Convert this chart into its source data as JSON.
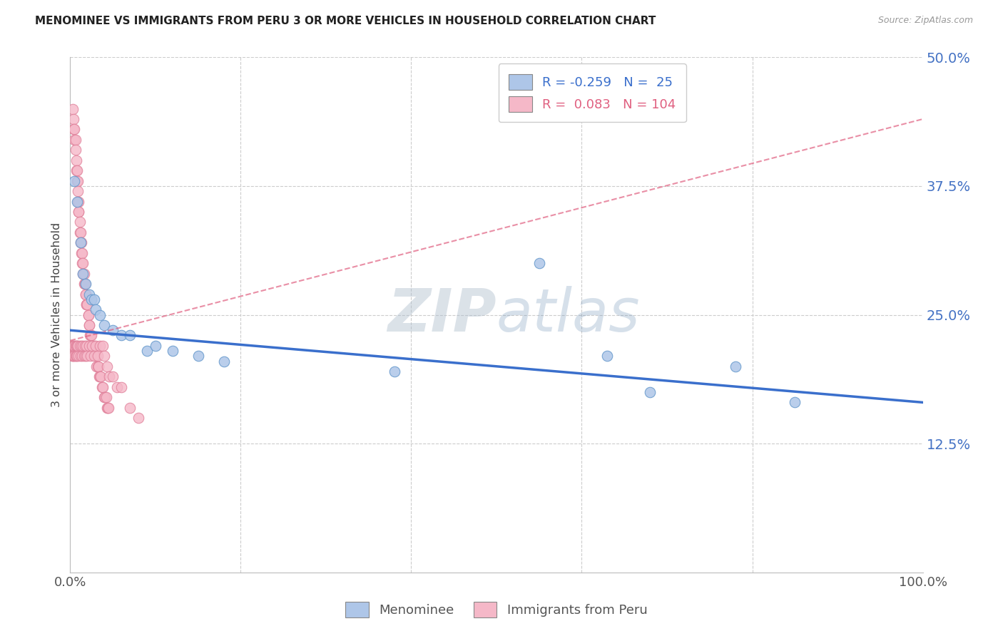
{
  "title": "MENOMINEE VS IMMIGRANTS FROM PERU 3 OR MORE VEHICLES IN HOUSEHOLD CORRELATION CHART",
  "source": "Source: ZipAtlas.com",
  "ylabel": "3 or more Vehicles in Household",
  "xlim": [
    0,
    1.0
  ],
  "ylim": [
    0,
    0.5
  ],
  "menominee_R": -0.259,
  "menominee_N": 25,
  "peru_R": 0.083,
  "peru_N": 104,
  "menominee_color": "#aec6e8",
  "menominee_edge": "#6699cc",
  "peru_color": "#f5b8c8",
  "peru_edge": "#e0809a",
  "menominee_line_color": "#3a6fcc",
  "peru_line_color": "#e06080",
  "watermark_color": "#d0dce8",
  "background_color": "#ffffff",
  "grid_color": "#cccccc",
  "men_trend_x0": 0.0,
  "men_trend_y0": 0.235,
  "men_trend_x1": 1.0,
  "men_trend_y1": 0.165,
  "peru_trend_x0": 0.0,
  "peru_trend_y0": 0.225,
  "peru_trend_x1": 1.0,
  "peru_trend_y1": 0.44,
  "menominee_x": [
    0.005,
    0.008,
    0.012,
    0.015,
    0.018,
    0.022,
    0.025,
    0.028,
    0.03,
    0.035,
    0.04,
    0.05,
    0.06,
    0.07,
    0.09,
    0.1,
    0.12,
    0.15,
    0.18,
    0.38,
    0.55,
    0.63,
    0.68,
    0.78,
    0.85
  ],
  "menominee_y": [
    0.38,
    0.36,
    0.32,
    0.29,
    0.28,
    0.27,
    0.265,
    0.265,
    0.255,
    0.25,
    0.24,
    0.235,
    0.23,
    0.23,
    0.215,
    0.22,
    0.215,
    0.21,
    0.205,
    0.195,
    0.3,
    0.21,
    0.175,
    0.2,
    0.165
  ],
  "peru_x": [
    0.003,
    0.004,
    0.004,
    0.005,
    0.005,
    0.006,
    0.006,
    0.007,
    0.007,
    0.008,
    0.008,
    0.009,
    0.009,
    0.009,
    0.01,
    0.01,
    0.01,
    0.011,
    0.011,
    0.012,
    0.012,
    0.013,
    0.013,
    0.014,
    0.014,
    0.015,
    0.015,
    0.016,
    0.016,
    0.017,
    0.017,
    0.018,
    0.018,
    0.019,
    0.019,
    0.02,
    0.021,
    0.021,
    0.022,
    0.022,
    0.023,
    0.024,
    0.025,
    0.026,
    0.027,
    0.028,
    0.029,
    0.03,
    0.031,
    0.032,
    0.033,
    0.034,
    0.035,
    0.036,
    0.037,
    0.038,
    0.04,
    0.041,
    0.042,
    0.043,
    0.044,
    0.045,
    0.002,
    0.002,
    0.003,
    0.003,
    0.004,
    0.004,
    0.005,
    0.005,
    0.006,
    0.006,
    0.007,
    0.007,
    0.008,
    0.008,
    0.009,
    0.01,
    0.011,
    0.012,
    0.013,
    0.014,
    0.015,
    0.016,
    0.017,
    0.018,
    0.019,
    0.02,
    0.022,
    0.024,
    0.026,
    0.028,
    0.03,
    0.032,
    0.035,
    0.038,
    0.04,
    0.043,
    0.046,
    0.05,
    0.055,
    0.06,
    0.07,
    0.08
  ],
  "peru_y": [
    0.45,
    0.44,
    0.43,
    0.43,
    0.42,
    0.42,
    0.41,
    0.4,
    0.39,
    0.39,
    0.38,
    0.38,
    0.37,
    0.36,
    0.36,
    0.35,
    0.35,
    0.34,
    0.33,
    0.33,
    0.32,
    0.32,
    0.31,
    0.31,
    0.3,
    0.3,
    0.29,
    0.29,
    0.28,
    0.28,
    0.28,
    0.27,
    0.27,
    0.26,
    0.26,
    0.26,
    0.25,
    0.25,
    0.24,
    0.24,
    0.23,
    0.23,
    0.23,
    0.22,
    0.22,
    0.22,
    0.21,
    0.21,
    0.2,
    0.2,
    0.2,
    0.19,
    0.19,
    0.19,
    0.18,
    0.18,
    0.17,
    0.17,
    0.17,
    0.16,
    0.16,
    0.16,
    0.22,
    0.21,
    0.22,
    0.21,
    0.22,
    0.21,
    0.22,
    0.21,
    0.22,
    0.21,
    0.22,
    0.21,
    0.22,
    0.21,
    0.22,
    0.21,
    0.22,
    0.21,
    0.22,
    0.21,
    0.22,
    0.21,
    0.22,
    0.21,
    0.22,
    0.21,
    0.22,
    0.21,
    0.22,
    0.21,
    0.22,
    0.21,
    0.22,
    0.22,
    0.21,
    0.2,
    0.19,
    0.19,
    0.18,
    0.18,
    0.16,
    0.15
  ]
}
